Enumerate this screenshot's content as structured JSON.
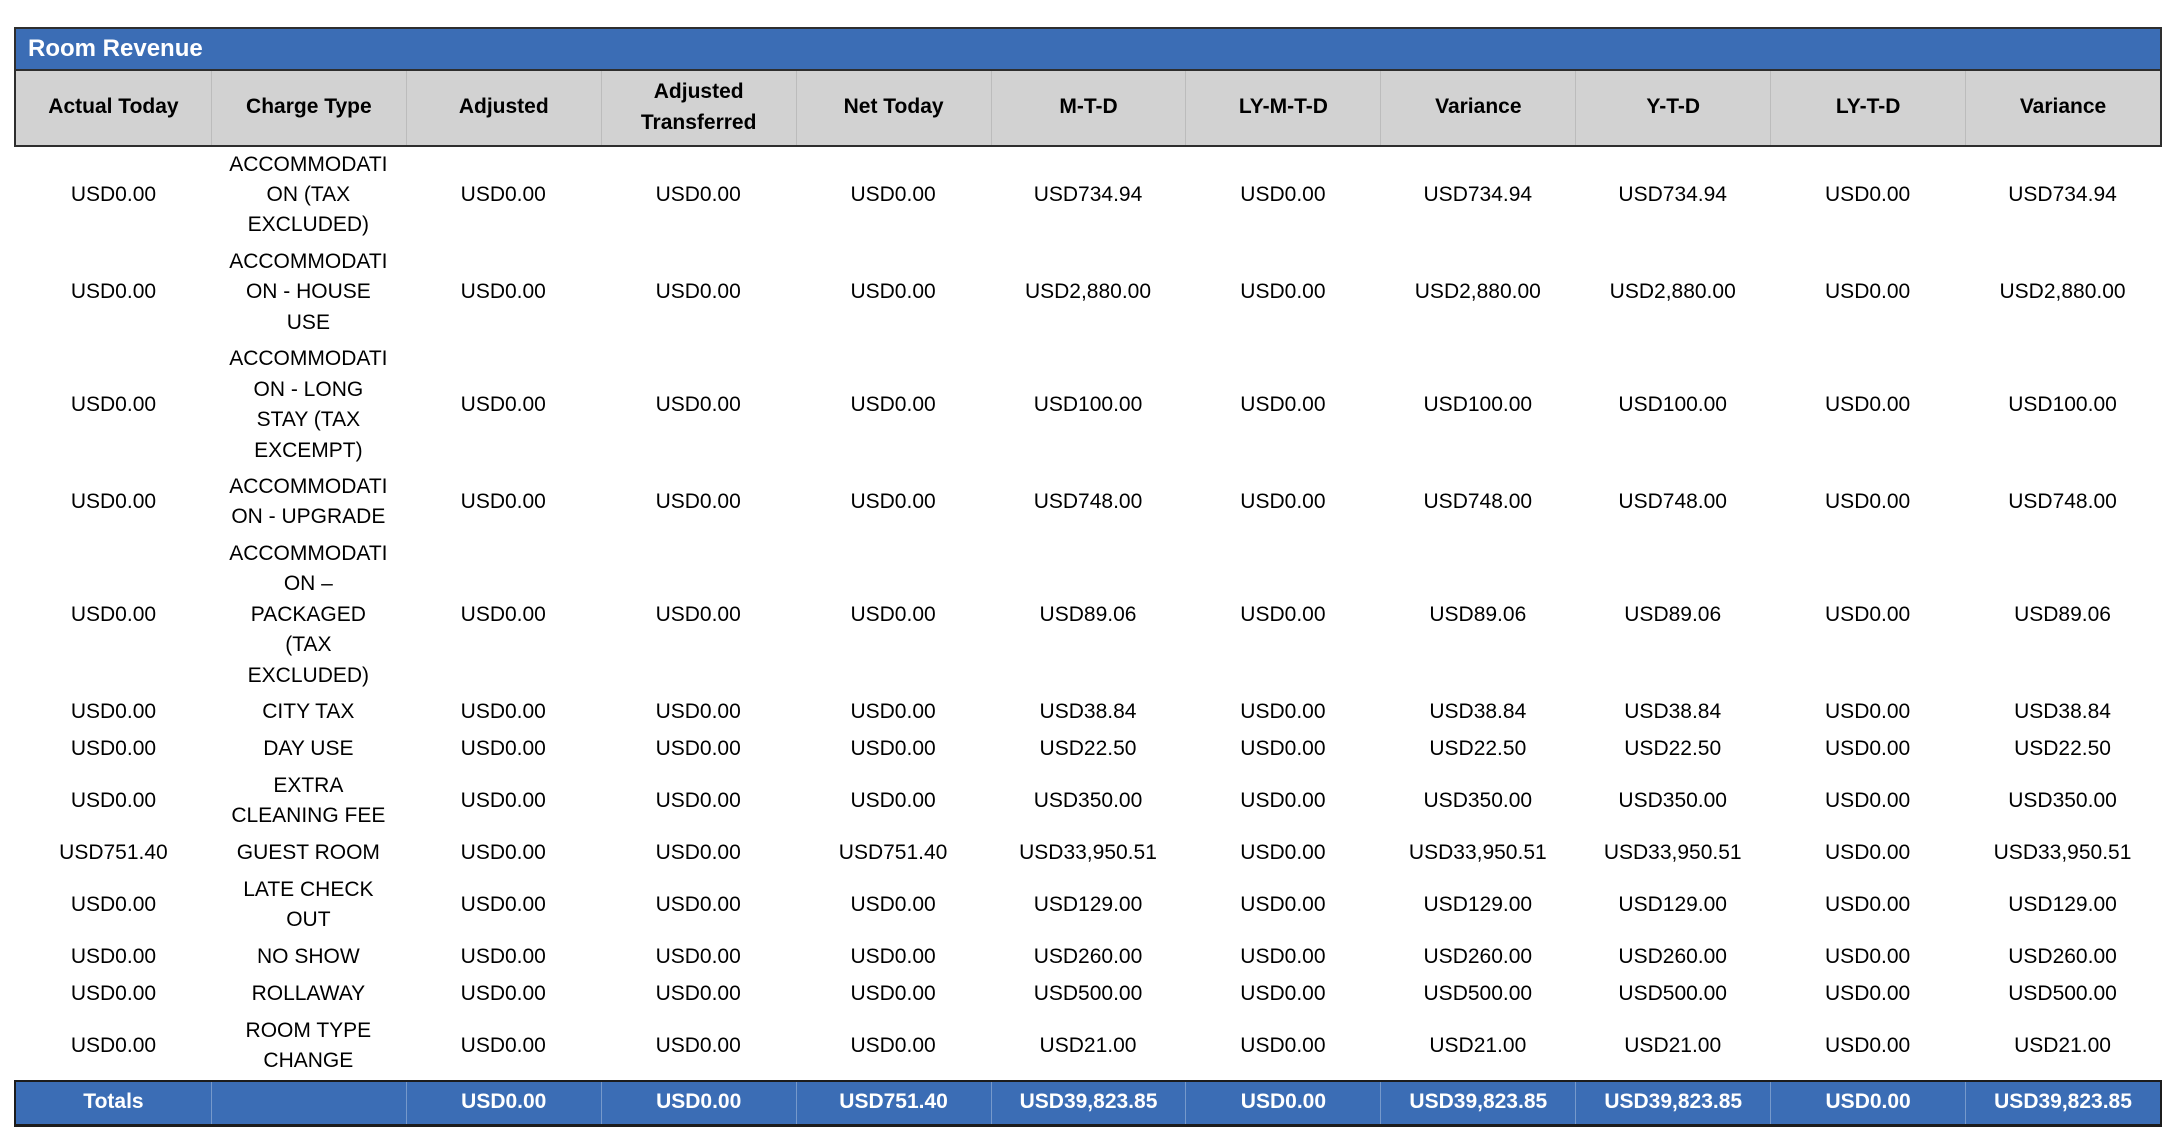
{
  "report": {
    "title": "Room Revenue"
  },
  "colors": {
    "accent_blue": "#3b6db5",
    "header_grey": "#d2d2d2",
    "totals_text": "#ffffff"
  },
  "table": {
    "columns": [
      "Actual Today",
      "Charge Type",
      "Adjusted",
      "Adjusted Transferred",
      "Net Today",
      "M-T-D",
      "LY-M-T-D",
      "Variance",
      "Y-T-D",
      "LY-T-D",
      "Variance"
    ],
    "rows": [
      [
        "USD0.00",
        "ACCOMMODATION (TAX EXCLUDED)",
        "USD0.00",
        "USD0.00",
        "USD0.00",
        "USD734.94",
        "USD0.00",
        "USD734.94",
        "USD734.94",
        "USD0.00",
        "USD734.94"
      ],
      [
        "USD0.00",
        "ACCOMMODATION - HOUSE USE",
        "USD0.00",
        "USD0.00",
        "USD0.00",
        "USD2,880.00",
        "USD0.00",
        "USD2,880.00",
        "USD2,880.00",
        "USD0.00",
        "USD2,880.00"
      ],
      [
        "USD0.00",
        "ACCOMMODATION - LONG STAY (TAX EXCEMPT)",
        "USD0.00",
        "USD0.00",
        "USD0.00",
        "USD100.00",
        "USD0.00",
        "USD100.00",
        "USD100.00",
        "USD0.00",
        "USD100.00"
      ],
      [
        "USD0.00",
        "ACCOMMODATION - UPGRADE",
        "USD0.00",
        "USD0.00",
        "USD0.00",
        "USD748.00",
        "USD0.00",
        "USD748.00",
        "USD748.00",
        "USD0.00",
        "USD748.00"
      ],
      [
        "USD0.00",
        "ACCOMMODATION – PACKAGED (TAX EXCLUDED)",
        "USD0.00",
        "USD0.00",
        "USD0.00",
        "USD89.06",
        "USD0.00",
        "USD89.06",
        "USD89.06",
        "USD0.00",
        "USD89.06"
      ],
      [
        "USD0.00",
        "CITY TAX",
        "USD0.00",
        "USD0.00",
        "USD0.00",
        "USD38.84",
        "USD0.00",
        "USD38.84",
        "USD38.84",
        "USD0.00",
        "USD38.84"
      ],
      [
        "USD0.00",
        "DAY USE",
        "USD0.00",
        "USD0.00",
        "USD0.00",
        "USD22.50",
        "USD0.00",
        "USD22.50",
        "USD22.50",
        "USD0.00",
        "USD22.50"
      ],
      [
        "USD0.00",
        "EXTRA CLEANING FEE",
        "USD0.00",
        "USD0.00",
        "USD0.00",
        "USD350.00",
        "USD0.00",
        "USD350.00",
        "USD350.00",
        "USD0.00",
        "USD350.00"
      ],
      [
        "USD751.40",
        "GUEST ROOM",
        "USD0.00",
        "USD0.00",
        "USD751.40",
        "USD33,950.51",
        "USD0.00",
        "USD33,950.51",
        "USD33,950.51",
        "USD0.00",
        "USD33,950.51"
      ],
      [
        "USD0.00",
        "LATE CHECK OUT",
        "USD0.00",
        "USD0.00",
        "USD0.00",
        "USD129.00",
        "USD0.00",
        "USD129.00",
        "USD129.00",
        "USD0.00",
        "USD129.00"
      ],
      [
        "USD0.00",
        "NO SHOW",
        "USD0.00",
        "USD0.00",
        "USD0.00",
        "USD260.00",
        "USD0.00",
        "USD260.00",
        "USD260.00",
        "USD0.00",
        "USD260.00"
      ],
      [
        "USD0.00",
        "ROLLAWAY",
        "USD0.00",
        "USD0.00",
        "USD0.00",
        "USD500.00",
        "USD0.00",
        "USD500.00",
        "USD500.00",
        "USD0.00",
        "USD500.00"
      ],
      [
        "USD0.00",
        "ROOM TYPE CHANGE",
        "USD0.00",
        "USD0.00",
        "USD0.00",
        "USD21.00",
        "USD0.00",
        "USD21.00",
        "USD21.00",
        "USD0.00",
        "USD21.00"
      ]
    ],
    "totals": [
      "Totals",
      "",
      "USD0.00",
      "USD0.00",
      "USD751.40",
      "USD39,823.85",
      "USD0.00",
      "USD39,823.85",
      "USD39,823.85",
      "USD0.00",
      "USD39,823.85"
    ]
  }
}
